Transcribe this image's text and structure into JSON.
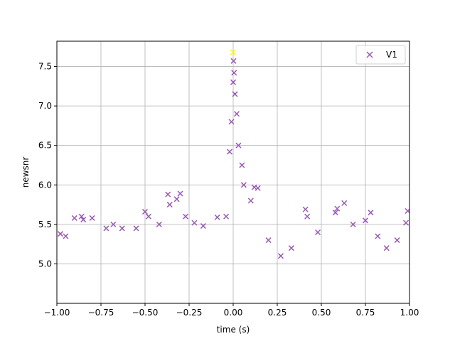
{
  "chart_data": {
    "type": "scatter",
    "title": "",
    "xlabel": "time (s)",
    "ylabel": "newsnr",
    "xlim": [
      -1.0,
      1.0
    ],
    "ylim": [
      4.5,
      7.82
    ],
    "grid": true,
    "legend": {
      "placement": "top-right",
      "entries": [
        "V1"
      ]
    },
    "x_ticks": [
      {
        "value": -1.0,
        "label": "−1.00"
      },
      {
        "value": -0.75,
        "label": "−0.75"
      },
      {
        "value": -0.5,
        "label": "−0.50"
      },
      {
        "value": -0.25,
        "label": "−0.25"
      },
      {
        "value": 0.0,
        "label": "0.00"
      },
      {
        "value": 0.25,
        "label": "0.25"
      },
      {
        "value": 0.5,
        "label": "0.50"
      },
      {
        "value": 0.75,
        "label": "0.75"
      },
      {
        "value": 1.0,
        "label": "1.00"
      }
    ],
    "y_ticks": [
      {
        "value": 5.0,
        "label": "5.0"
      },
      {
        "value": 5.5,
        "label": "5.5"
      },
      {
        "value": 6.0,
        "label": "6.0"
      },
      {
        "value": 6.5,
        "label": "6.5"
      },
      {
        "value": 7.0,
        "label": "7.0"
      },
      {
        "value": 7.5,
        "label": "7.5"
      }
    ],
    "series": [
      {
        "name": "V1",
        "marker": "x",
        "color": "#9b59b6",
        "points": [
          [
            -0.98,
            5.38
          ],
          [
            -0.95,
            5.35
          ],
          [
            -0.9,
            5.58
          ],
          [
            -0.86,
            5.6
          ],
          [
            -0.85,
            5.56
          ],
          [
            -0.8,
            5.58
          ],
          [
            -0.72,
            5.45
          ],
          [
            -0.68,
            5.5
          ],
          [
            -0.63,
            5.45
          ],
          [
            -0.55,
            5.45
          ],
          [
            -0.5,
            5.66
          ],
          [
            -0.48,
            5.6
          ],
          [
            -0.42,
            5.5
          ],
          [
            -0.37,
            5.88
          ],
          [
            -0.36,
            5.75
          ],
          [
            -0.32,
            5.82
          ],
          [
            -0.3,
            5.89
          ],
          [
            -0.27,
            5.6
          ],
          [
            -0.22,
            5.52
          ],
          [
            -0.17,
            5.48
          ],
          [
            -0.09,
            5.59
          ],
          [
            -0.04,
            5.6
          ],
          [
            -0.02,
            6.42
          ],
          [
            -0.01,
            6.8
          ],
          [
            0.0,
            7.3
          ],
          [
            0.002,
            7.57
          ],
          [
            0.005,
            7.42
          ],
          [
            0.01,
            7.15
          ],
          [
            0.02,
            6.9
          ],
          [
            0.03,
            6.5
          ],
          [
            0.05,
            6.25
          ],
          [
            0.06,
            6.0
          ],
          [
            0.1,
            5.8
          ],
          [
            0.12,
            5.97
          ],
          [
            0.14,
            5.96
          ],
          [
            0.2,
            5.3
          ],
          [
            0.27,
            5.1
          ],
          [
            0.33,
            5.2
          ],
          [
            0.41,
            5.69
          ],
          [
            0.42,
            5.6
          ],
          [
            0.48,
            5.4
          ],
          [
            0.58,
            5.65
          ],
          [
            0.59,
            5.7
          ],
          [
            0.63,
            5.77
          ],
          [
            0.68,
            5.5
          ],
          [
            0.75,
            5.55
          ],
          [
            0.78,
            5.65
          ],
          [
            0.82,
            5.35
          ],
          [
            0.87,
            5.2
          ],
          [
            0.93,
            5.3
          ],
          [
            0.98,
            5.52
          ],
          [
            0.99,
            5.67
          ]
        ]
      }
    ],
    "loudest": {
      "x": 0.0,
      "y": 7.68,
      "color": "#ffff00"
    }
  }
}
